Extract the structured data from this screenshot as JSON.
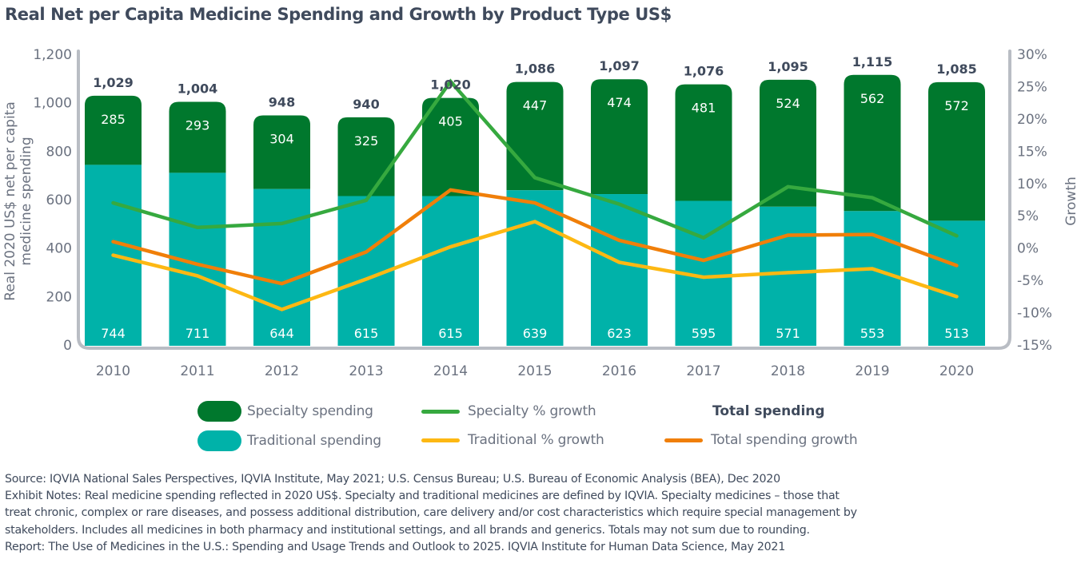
{
  "title": "Real Net per Capita Medicine Spending and Growth by Product Type US$",
  "chart_data": {
    "type": "bar",
    "subtype": "stacked bar with line overlay (dual axis)",
    "title": "Real Net per Capita Medicine Spending and Growth by Product Type US$",
    "categories": [
      "2010",
      "2011",
      "2012",
      "2013",
      "2014",
      "2015",
      "2016",
      "2017",
      "2018",
      "2019",
      "2020"
    ],
    "series": [
      {
        "name": "Traditional spending",
        "type": "bar",
        "axis": "left",
        "color": "#00b2a9",
        "values": [
          744,
          711,
          644,
          615,
          615,
          639,
          623,
          595,
          571,
          553,
          513
        ]
      },
      {
        "name": "Specialty spending",
        "type": "bar",
        "axis": "left",
        "color": "#00782d",
        "values": [
          285,
          293,
          304,
          325,
          405,
          447,
          474,
          481,
          524,
          562,
          572
        ]
      },
      {
        "name": "Specialty % growth",
        "type": "line",
        "axis": "right",
        "color": "#36a93f",
        "values": [
          7.0,
          3.2,
          3.8,
          7.4,
          25.8,
          10.9,
          6.8,
          1.6,
          9.5,
          7.8,
          1.9
        ]
      },
      {
        "name": "Traditional % growth",
        "type": "line",
        "axis": "right",
        "color": "#fdb813",
        "values": [
          -1.1,
          -4.3,
          -9.5,
          -4.8,
          0.2,
          4.1,
          -2.2,
          -4.5,
          -3.8,
          -3.2,
          -7.5
        ]
      },
      {
        "name": "Total spending growth",
        "type": "line",
        "axis": "right",
        "color": "#f07f09",
        "values": [
          1.0,
          -2.5,
          -5.5,
          -0.6,
          9.0,
          7.0,
          1.2,
          -1.9,
          2.0,
          2.1,
          -2.7
        ]
      }
    ],
    "totals": [
      1029,
      1004,
      948,
      940,
      1020,
      1086,
      1097,
      1076,
      1095,
      1115,
      1085
    ],
    "total_labels": [
      "1,029",
      "1,004",
      "948",
      "940",
      "1,020",
      "1,086",
      "1,097",
      "1,076",
      "1,095",
      "1,115",
      "1,085"
    ],
    "xlabel": "",
    "ylabel": "Real 2020 US$ net per capita medicine spending",
    "ylabel_lines": [
      "Real 2020 US$ net per capita",
      "medicine spending"
    ],
    "y2label": "Growth",
    "ylim": [
      0,
      1200
    ],
    "yticks": [
      0,
      200,
      400,
      600,
      800,
      1000,
      1200
    ],
    "ytick_labels": [
      "0",
      "200",
      "400",
      "600",
      "800",
      "1,000",
      "1,200"
    ],
    "y2lim": [
      -15,
      30
    ],
    "y2ticks": [
      -15,
      -10,
      -5,
      0,
      5,
      10,
      15,
      20,
      25,
      30
    ],
    "y2tick_labels": [
      "-15%",
      "-10%",
      "-5%",
      "0%",
      "5%",
      "10%",
      "15%",
      "20%",
      "25%",
      "30%"
    ],
    "grid": false,
    "legend_position": "bottom"
  },
  "legend": {
    "specialty_spending": "Specialty spending",
    "traditional_spending": "Traditional spending",
    "specialty_growth": "Specialty % growth",
    "traditional_growth": "Traditional % growth",
    "total_heading": "Total spending",
    "total_growth": "Total spending growth"
  },
  "colors": {
    "specialty": "#00782d",
    "traditional": "#00b2a9",
    "specialty_growth": "#36a93f",
    "traditional_growth": "#fdb813",
    "total_growth": "#f07f09",
    "axis": "#b9bdc4"
  },
  "notes": {
    "source": "Source: IQVIA National Sales Perspectives, IQVIA Institute, May 2021; U.S. Census Bureau; U.S. Bureau of Economic Analysis (BEA), Dec 2020",
    "exhibit_line1": "Exhibit Notes: Real medicine spending reflected in 2020 US$. Specialty and traditional medicines are defined by IQVIA. Specialty medicines – those that",
    "exhibit_line2": "treat chronic, complex or rare diseases, and possess additional distribution, care delivery and/or cost characteristics which require special management by",
    "exhibit_line3": "stakeholders. Includes all medicines in both pharmacy and institutional settings, and all brands and generics. Totals may not sum due to rounding.",
    "report": "Report: The Use of Medicines in the U.S.: Spending and Usage Trends and Outlook to 2025. IQVIA Institute for Human Data Science, May 2021"
  }
}
